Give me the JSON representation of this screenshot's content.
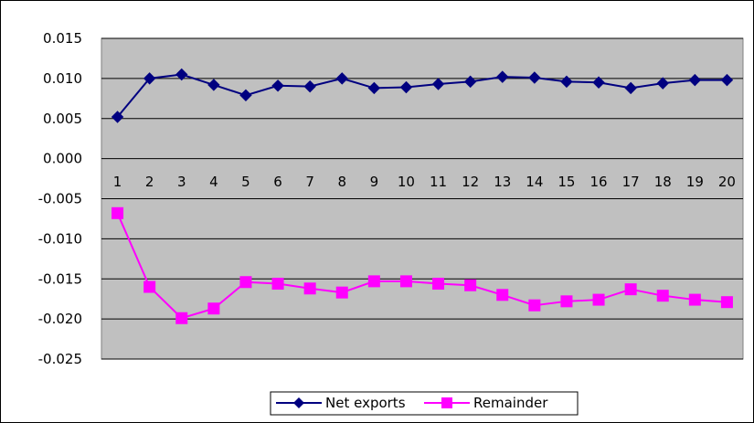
{
  "chart_data": {
    "type": "line",
    "title": "",
    "xlabel": "",
    "ylabel": "",
    "categories": [
      "1",
      "2",
      "3",
      "4",
      "5",
      "6",
      "7",
      "8",
      "9",
      "10",
      "11",
      "12",
      "13",
      "14",
      "15",
      "16",
      "17",
      "18",
      "19",
      "20"
    ],
    "ylim": [
      -0.025,
      0.015
    ],
    "y_ticks": [
      "0.015",
      "0.010",
      "0.005",
      "0.000",
      "-0.005",
      "-0.010",
      "-0.015",
      "-0.020",
      "-0.025"
    ],
    "grid": true,
    "legend_position": "bottom",
    "plot_background": "#c0c0c0",
    "series": [
      {
        "name": "Net exports",
        "color": "#000080",
        "marker": "diamond",
        "values": [
          0.0052,
          0.01,
          0.0105,
          0.0092,
          0.0079,
          0.0091,
          0.009,
          0.01,
          0.0088,
          0.0089,
          0.0093,
          0.0096,
          0.0102,
          0.0101,
          0.0096,
          0.0095,
          0.0088,
          0.0094,
          0.0098,
          0.0098
        ]
      },
      {
        "name": "Remainder",
        "color": "#ff00ff",
        "marker": "square",
        "values": [
          -0.0068,
          -0.016,
          -0.0199,
          -0.0187,
          -0.0154,
          -0.0156,
          -0.0162,
          -0.0167,
          -0.0153,
          -0.0153,
          -0.0156,
          -0.0158,
          -0.017,
          -0.0183,
          -0.0178,
          -0.0176,
          -0.0163,
          -0.0171,
          -0.0176,
          -0.0179
        ]
      }
    ]
  }
}
